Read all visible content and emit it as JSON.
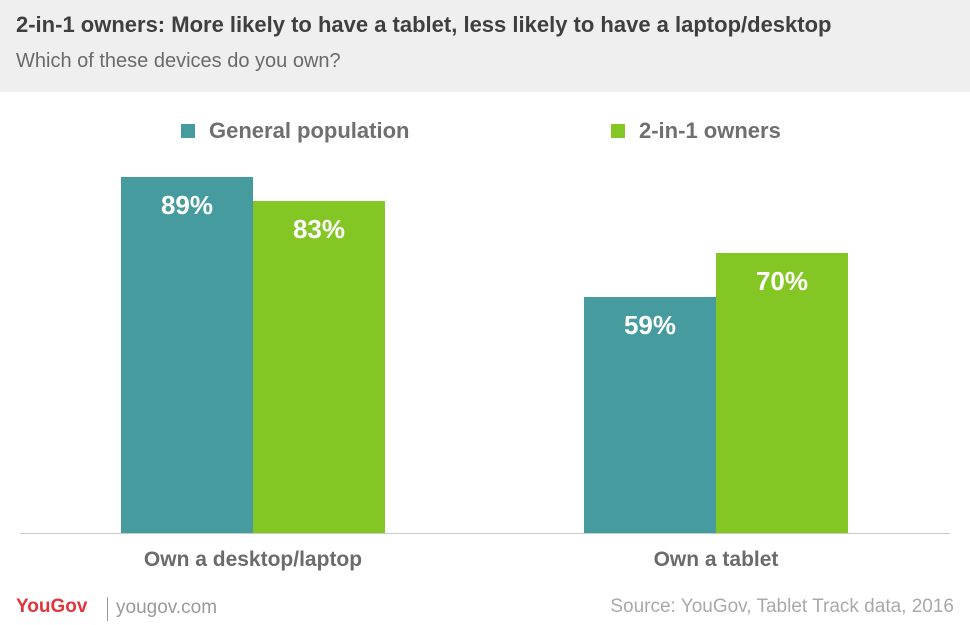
{
  "header": {
    "title": "2-in-1 owners: More likely to have a tablet, less likely to have a laptop/desktop",
    "subtitle": "Which of these devices do you own?"
  },
  "footer": {
    "logo": "YouGov",
    "site": "yougov.com",
    "source": "Source: YouGov, Tablet Track data, 2016"
  },
  "chart_data": {
    "type": "bar",
    "categories": [
      "Own a desktop/laptop",
      "Own a tablet"
    ],
    "series": [
      {
        "name": "General population",
        "values": [
          89,
          59
        ],
        "labels": [
          "89%",
          "59%"
        ],
        "color": "#469b9f"
      },
      {
        "name": "2-in-1 owners",
        "values": [
          83,
          70
        ],
        "labels": [
          "83%",
          "70%"
        ],
        "color": "#84c724"
      }
    ],
    "ylim": [
      0,
      100
    ],
    "grid": false,
    "legend": "top"
  }
}
